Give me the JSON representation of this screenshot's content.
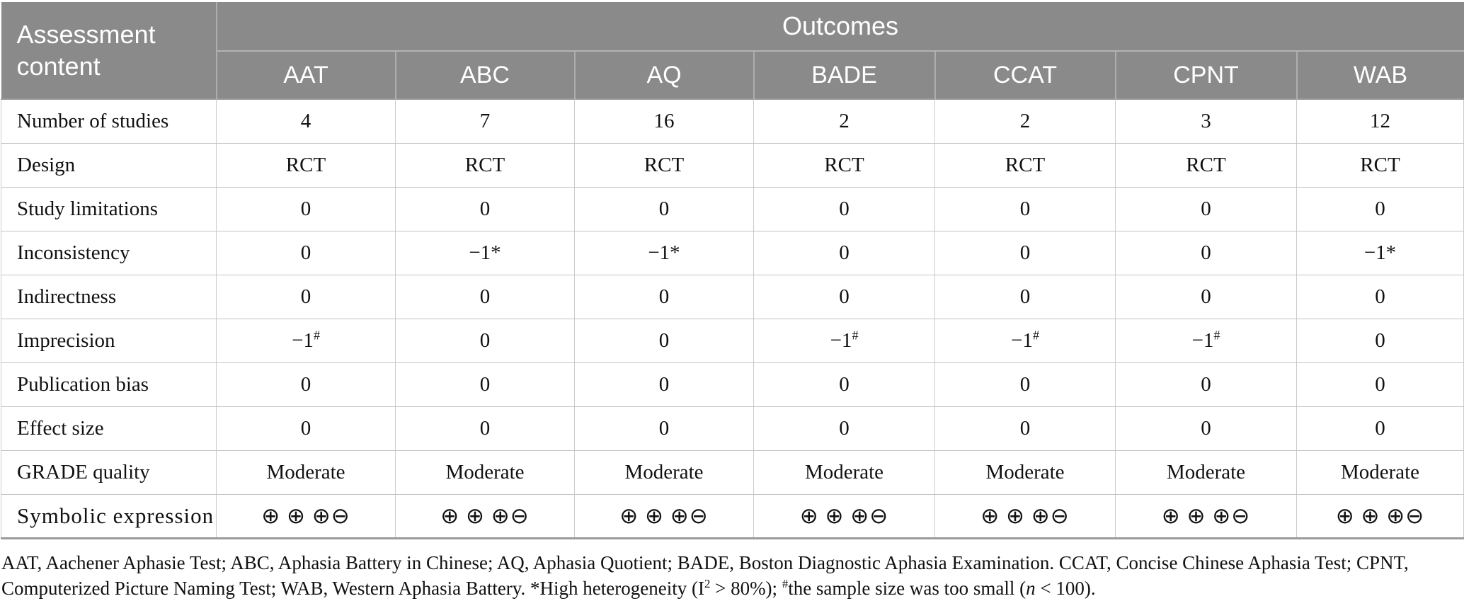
{
  "table": {
    "corner_header": "Assessment content",
    "outcomes_header": "Outcomes",
    "columns": [
      "AAT",
      "ABC",
      "AQ",
      "BADE",
      "CCAT",
      "CPNT",
      "WAB"
    ],
    "rows": [
      {
        "label": "Number of studies",
        "values": [
          "4",
          "7",
          "16",
          "2",
          "2",
          "3",
          "12"
        ]
      },
      {
        "label": "Design",
        "values": [
          "RCT",
          "RCT",
          "RCT",
          "RCT",
          "RCT",
          "RCT",
          "RCT"
        ]
      },
      {
        "label": "Study limitations",
        "values": [
          "0",
          "0",
          "0",
          "0",
          "0",
          "0",
          "0"
        ]
      },
      {
        "label": "Inconsistency",
        "values": [
          "0",
          "−1*",
          "−1*",
          "0",
          "0",
          "0",
          "−1*"
        ]
      },
      {
        "label": "Indirectness",
        "values": [
          "0",
          "0",
          "0",
          "0",
          "0",
          "0",
          "0"
        ]
      },
      {
        "label": "Imprecision",
        "values": [
          {
            "v": "−1",
            "sup": "#"
          },
          "0",
          "0",
          {
            "v": "−1",
            "sup": "#"
          },
          {
            "v": "−1",
            "sup": "#"
          },
          {
            "v": "−1",
            "sup": "#"
          },
          "0"
        ]
      },
      {
        "label": "Publication bias",
        "values": [
          "0",
          "0",
          "0",
          "0",
          "0",
          "0",
          "0"
        ]
      },
      {
        "label": "Effect size",
        "values": [
          "0",
          "0",
          "0",
          "0",
          "0",
          "0",
          "0"
        ]
      },
      {
        "label": "GRADE quality",
        "values": [
          "Moderate",
          "Moderate",
          "Moderate",
          "Moderate",
          "Moderate",
          "Moderate",
          "Moderate"
        ]
      },
      {
        "label": "Symbolic expression",
        "kind": "symbols",
        "values": [
          "⊕ ⊕ ⊕⊖",
          "⊕ ⊕ ⊕⊖",
          "⊕ ⊕ ⊕⊖",
          "⊕ ⊕ ⊕⊖",
          "⊕ ⊕ ⊕⊖",
          "⊕ ⊕ ⊕⊖",
          "⊕ ⊕ ⊕⊖"
        ]
      }
    ],
    "symbol_plus": "⊕",
    "symbol_minus": "⊖"
  },
  "footnote": {
    "segments": [
      {
        "t": "AAT, Aachener Aphasie Test; ABC, Aphasia Battery in Chinese; AQ, Aphasia Quotient; BADE, Boston Diagnostic Aphasia Examination. CCAT, Concise Chinese Aphasia Test; CPNT, Computerized Picture Naming Test; WAB, Western Aphasia Battery. *High heterogeneity (I"
      },
      {
        "t": "2",
        "style": "sup"
      },
      {
        "t": " > 80%); "
      },
      {
        "t": "#",
        "style": "sup"
      },
      {
        "t": "the sample size was too small ("
      },
      {
        "t": "n",
        "style": "italic"
      },
      {
        "t": " < 100)."
      }
    ]
  },
  "colors": {
    "header_bg": "#8a8a8a",
    "header_text": "#ffffff",
    "body_border": "#cccccc",
    "table_bottom_border": "#9a9a9a",
    "body_text": "#111111"
  }
}
